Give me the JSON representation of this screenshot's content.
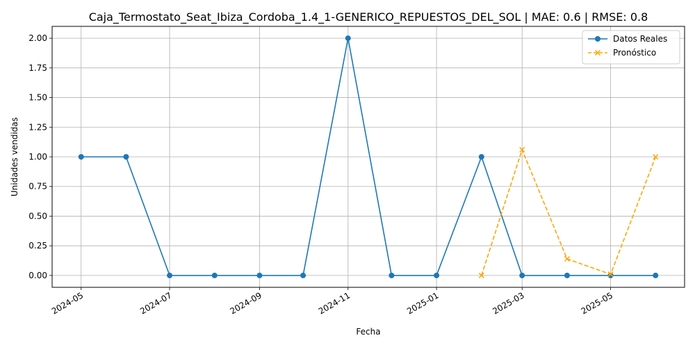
{
  "chart_data": {
    "type": "line",
    "title": "Caja_Termostato_Seat_Ibiza_Cordoba_1.4_1-GENERICO_REPUESTOS_DEL_SOL | MAE: 0.6 | RMSE: 0.8",
    "xlabel": "Fecha",
    "ylabel": "Unidades vendidas",
    "xlim": [
      "2024-04-11",
      "2025-06-21"
    ],
    "ylim": [
      -0.1,
      2.1
    ],
    "x_ticks": [
      "2024-05",
      "2024-07",
      "2024-09",
      "2024-11",
      "2025-01",
      "2025-03",
      "2025-05"
    ],
    "y_ticks": [
      "0.00",
      "0.25",
      "0.50",
      "0.75",
      "1.00",
      "1.25",
      "1.50",
      "1.75",
      "2.00"
    ],
    "grid": true,
    "legend_position": "top-right",
    "series": [
      {
        "name": "Datos Reales",
        "color": "#1f77b4",
        "line_style": "solid",
        "marker": "circle",
        "x": [
          "2024-05-01",
          "2024-06-01",
          "2024-07-01",
          "2024-08-01",
          "2024-09-01",
          "2024-10-01",
          "2024-11-01",
          "2024-12-01",
          "2025-01-01",
          "2025-02-01",
          "2025-03-01",
          "2025-04-01",
          "2025-05-01",
          "2025-06-01"
        ],
        "values": [
          1,
          1,
          0,
          0,
          0,
          0,
          2,
          0,
          0,
          1,
          0,
          0,
          0,
          0
        ]
      },
      {
        "name": "Pronóstico",
        "color": "#ffa500",
        "line_style": "dashed",
        "marker": "x",
        "x": [
          "2025-02-01",
          "2025-03-01",
          "2025-04-01",
          "2025-05-01",
          "2025-06-01"
        ],
        "values": [
          0.0,
          1.06,
          0.14,
          0.01,
          1.0
        ]
      }
    ]
  }
}
